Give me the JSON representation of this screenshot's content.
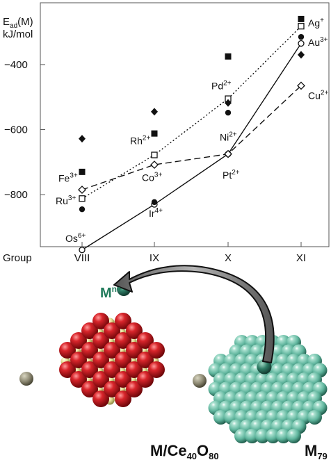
{
  "chart_data": {
    "type": "line",
    "ylabel_line1": "E",
    "ylabel_sub": "ad",
    "ylabel_suffix": "(M)",
    "ylabel_line2": "kJ/mol",
    "xlabel": "Group",
    "categories": [
      "VIII",
      "IX",
      "X",
      "XI"
    ],
    "ylim": [
      -960,
      -210
    ],
    "yticks": [
      {
        "value": -400,
        "label": "−400"
      },
      {
        "value": -600,
        "label": "−600"
      },
      {
        "value": -800,
        "label": "−800"
      }
    ],
    "grid": false,
    "series": [
      {
        "style": "solid",
        "marker": "open-circle",
        "values": [
          -970,
          -830,
          -675,
          -335
        ]
      },
      {
        "style": "dotted",
        "marker": "open-square",
        "values": [
          -812,
          -678,
          -505,
          -282
        ]
      },
      {
        "style": "dashed",
        "marker": "open-diamond",
        "values": [
          -785,
          -708,
          -675,
          -465
        ]
      },
      {
        "style": "none",
        "marker": "filled-square",
        "values": [
          -730,
          -612,
          -375,
          -260
        ]
      },
      {
        "style": "none",
        "marker": "filled-diamond",
        "values": [
          -628,
          -545,
          -518,
          -370
        ]
      },
      {
        "style": "none",
        "marker": "filled-circle",
        "values": [
          -845,
          -823,
          -548,
          -315
        ]
      }
    ],
    "annotations": [
      {
        "base": "Ag",
        "sup": "+",
        "x": 3,
        "y": -272,
        "anchor": "left"
      },
      {
        "base": "Au",
        "sup": "3+",
        "x": 3,
        "y": -332,
        "anchor": "left"
      },
      {
        "base": "Cu",
        "sup": "2+",
        "x": 3,
        "y": -495,
        "anchor": "left"
      },
      {
        "base": "Pd",
        "sup": "2+",
        "x": 2,
        "y": -476,
        "anchor": "pd"
      },
      {
        "base": "Ni",
        "sup": "2+",
        "x": 2,
        "y": -630,
        "anchor": "ni"
      },
      {
        "base": "Pt",
        "sup": "2+",
        "x": 2,
        "y": -712,
        "anchor": "pt"
      },
      {
        "base": "Rh",
        "sup": "2+",
        "x": 1,
        "y": -645,
        "anchor": "rh"
      },
      {
        "base": "Co",
        "sup": "3+",
        "x": 1,
        "y": -758,
        "anchor": "co"
      },
      {
        "base": "Ir",
        "sup": "4+",
        "x": 1,
        "y": -868,
        "anchor": "ir"
      },
      {
        "base": "Fe",
        "sup": "3+",
        "x": 0,
        "y": -760,
        "anchor": "fe"
      },
      {
        "base": "Ru",
        "sup": "3+",
        "x": 0,
        "y": -830,
        "anchor": "ru"
      },
      {
        "base": "Os",
        "sup": "6+",
        "x": 0,
        "y": -945,
        "anchor": "os"
      }
    ]
  },
  "illustration": {
    "ion_label_base": "M",
    "ion_label_sup": "n+",
    "support_label_base": "M/Ce",
    "support_label_sub1": "40",
    "support_label_mid": "O",
    "support_label_sub2": "80",
    "cluster_label_base": "M",
    "cluster_label_sub": "79",
    "colors": {
      "oxygen": "#c8141a",
      "cerium": "#e6e29a",
      "cluster": "#5fb59d",
      "cluster_dark": "#2f7d66",
      "ion_label": "#1f7a5a",
      "edge_atom": "#8a8670"
    }
  }
}
